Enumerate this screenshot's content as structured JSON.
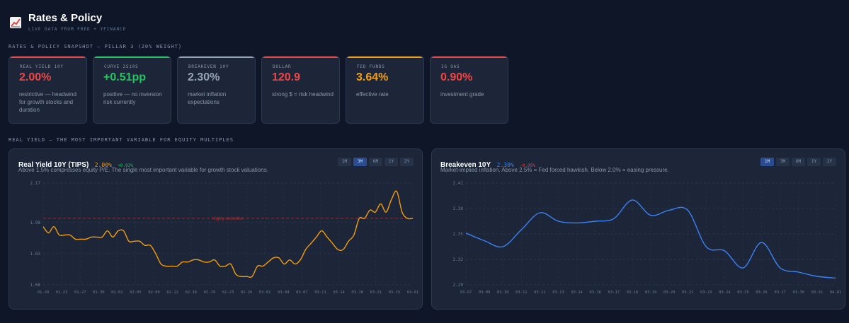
{
  "header": {
    "title": "Rates & Policy",
    "subtitle": "LIVE DATA FROM FRED + YFINANCE"
  },
  "snapshot_label": "RATES & POLICY SNAPSHOT — PILLAR 3 (20% WEIGHT)",
  "cards": [
    {
      "label": "REAL YIELD 10Y",
      "value": "2.00%",
      "note": "restrictive — headwind for growth stocks and duration",
      "color": "#ef4444"
    },
    {
      "label": "CURVE 2S10S",
      "value": "+0.51pp",
      "note": "positive — no inversion risk currently",
      "color": "#22c55e"
    },
    {
      "label": "BREAKEVEN 10Y",
      "value": "2.30%",
      "note": "market inflation expectations",
      "color": "#94a3b8"
    },
    {
      "label": "DOLLAR",
      "value": "120.9",
      "note": "strong $ = risk headwind",
      "color": "#ef4444"
    },
    {
      "label": "FED FUNDS",
      "value": "3.64%",
      "note": "effective rate",
      "color": "#f59e0b"
    },
    {
      "label": "IG OAS",
      "value": "0.90%",
      "note": "investment grade",
      "color": "#ef4444"
    }
  ],
  "real_yield_label": "REAL YIELD — THE MOST IMPORTANT VARIABLE FOR EQUITY MULTIPLES",
  "range_buttons": [
    "1M",
    "3M",
    "6M",
    "1Y",
    "2Y"
  ],
  "panels": [
    {
      "title": "Real Yield 10Y (TIPS)",
      "value": "2.00%",
      "delta": "+0.03%",
      "value_color": "#f59e0b",
      "delta_color": "#22c55e",
      "description": "Above 1.5% compresses equity P/E. The single most important variable for growth stock valuations.",
      "active_range": "3M"
    },
    {
      "title": "Breakeven 10Y",
      "value": "2.30%",
      "delta": "-0.05%",
      "value_color": "#3b82f6",
      "delta_color": "#ef4444",
      "description": "Market-implied inflation. Above 2.5% = Fed forced hawkish. Below 2.0% = easing pressure.",
      "active_range": "1M"
    }
  ],
  "chart_data": [
    {
      "type": "line",
      "line_color": "#f59e0b",
      "ylim": [
        1.68,
        2.17
      ],
      "yticks": [
        "1.68",
        "1.83",
        "1.98",
        "2.17"
      ],
      "ytick_values": [
        1.68,
        1.83,
        1.98,
        2.17
      ],
      "xticks": [
        "01-20",
        "01-23",
        "01-27",
        "01-30",
        "02-02",
        "02-05",
        "02-09",
        "02-12",
        "02-16",
        "02-19",
        "02-23",
        "02-26",
        "03-01",
        "03-04",
        "03-07",
        "03-11",
        "03-14",
        "03-18",
        "03-21",
        "03-25",
        "04-01"
      ],
      "reference_line": {
        "value": 2.0,
        "label": "Highly restrictive",
        "color": "#dc2626"
      },
      "values": [
        1.96,
        1.93,
        1.96,
        1.92,
        1.92,
        1.92,
        1.9,
        1.9,
        1.9,
        1.91,
        1.91,
        1.91,
        1.94,
        1.91,
        1.94,
        1.94,
        1.89,
        1.89,
        1.89,
        1.87,
        1.87,
        1.83,
        1.78,
        1.77,
        1.77,
        1.77,
        1.79,
        1.79,
        1.8,
        1.8,
        1.79,
        1.79,
        1.8,
        1.77,
        1.77,
        1.78,
        1.73,
        1.72,
        1.72,
        1.72,
        1.77,
        1.77,
        1.79,
        1.81,
        1.81,
        1.78,
        1.8,
        1.78,
        1.8,
        1.85,
        1.88,
        1.91,
        1.94,
        1.91,
        1.88,
        1.85,
        1.85,
        1.89,
        1.92,
        2.0,
        2.0,
        2.04,
        2.03,
        2.07,
        2.03,
        2.09,
        2.13,
        2.03,
        2.0,
        2.0
      ]
    },
    {
      "type": "line",
      "line_color": "#3b82f6",
      "ylim": [
        2.29,
        2.41
      ],
      "yticks": [
        "2.29",
        "2.32",
        "2.35",
        "2.38",
        "2.41"
      ],
      "ytick_values": [
        2.29,
        2.32,
        2.35,
        2.38,
        2.41
      ],
      "xticks": [
        "03-07",
        "03-09",
        "03-10",
        "03-11",
        "03-12",
        "03-13",
        "03-14",
        "03-16",
        "03-17",
        "03-18",
        "03-19",
        "03-20",
        "03-21",
        "03-23",
        "03-24",
        "03-25",
        "03-26",
        "03-27",
        "03-30",
        "03-31",
        "04-01"
      ],
      "values": [
        2.351,
        2.342,
        2.335,
        2.355,
        2.375,
        2.365,
        2.363,
        2.365,
        2.368,
        2.39,
        2.372,
        2.378,
        2.378,
        2.335,
        2.33,
        2.31,
        2.34,
        2.31,
        2.305,
        2.3,
        2.298
      ]
    }
  ]
}
